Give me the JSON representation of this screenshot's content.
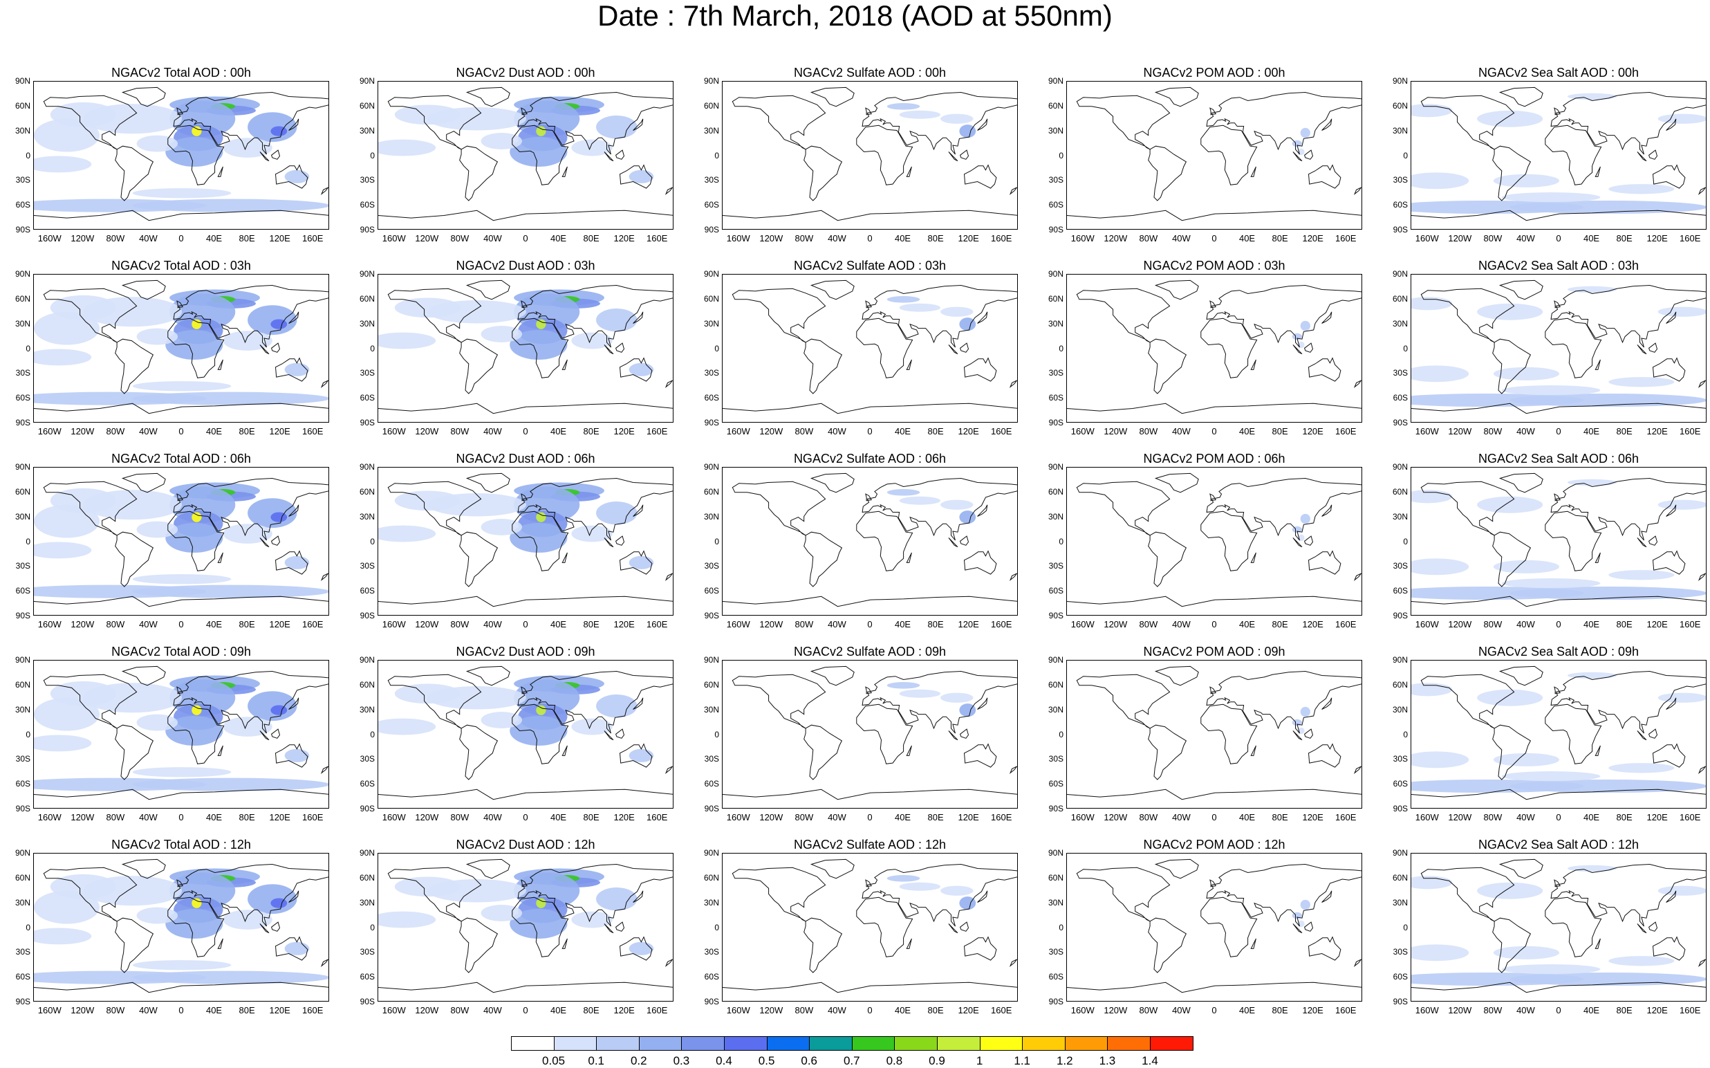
{
  "title": "Date : 7th March, 2018 (AOD at 550nm)",
  "species": [
    {
      "key": "total",
      "color_base": "#8aa8ee",
      "levels": [
        "00h",
        "03h",
        "06h",
        "09h",
        "12h"
      ],
      "titles": [
        "NGACv2 Total AOD : 00h",
        "NGACv2 Total AOD : 03h",
        "NGACv2 Total AOD : 06h",
        "NGACv2 Total AOD : 09h",
        "NGACv2 Total AOD :  12h"
      ]
    },
    {
      "key": "dust",
      "color_base": "#9bb6f1",
      "levels": [
        "00h",
        "03h",
        "06h",
        "09h",
        "12h"
      ],
      "titles": [
        "NGACv2 Dust AOD : 00h",
        "NGACv2 Dust AOD : 03h",
        "NGACv2 Dust AOD : 06h",
        "NGACv2 Dust AOD : 09h",
        "NGACv2 Dust AOD : 12h"
      ]
    },
    {
      "key": "sulfate",
      "color_base": "#b9ccf6",
      "levels": [
        "00h",
        "03h",
        "06h",
        "09h",
        "12h"
      ],
      "titles": [
        "NGACv2 Sulfate AOD : 00h",
        "NGACv2 Sulfate AOD : 03h",
        "NGACv2 Sulfate AOD : 06h",
        "NGACv2 Sulfate AOD : 09h",
        "NGACv2 Sulfate AOD : 12h"
      ]
    },
    {
      "key": "pom",
      "color_base": "#c7d6f8",
      "levels": [
        "00h",
        "03h",
        "06h",
        "09h",
        "12h"
      ],
      "titles": [
        "NGACv2 POM AOD : 00h",
        "NGACv2 POM AOD : 03h",
        "NGACv2 POM AOD : 06h",
        "NGACv2 POM AOD : 09h",
        "NGACv2 POM  AOD : 12h"
      ]
    },
    {
      "key": "seasalt",
      "color_base": "#aec4f4",
      "levels": [
        "00h",
        "03h",
        "06h",
        "09h",
        "12h"
      ],
      "titles": [
        "NGACv2 Sea Salt AOD : 00h",
        "NGACv2 Sea Salt AOD : 03h",
        "NGACv2 Sea Salt AOD : 06h",
        "NGACv2 Sea Salt  AOD : 09h",
        "NGACv2 Sea Salt AOD : 12h"
      ]
    }
  ],
  "lat_labels": [
    "90N",
    "60N",
    "30N",
    "0",
    "30S",
    "60S",
    "90S"
  ],
  "lon_labels": [
    "160W",
    "120W",
    "80W",
    "40W",
    "0",
    "40E",
    "80E",
    "120E",
    "160E"
  ],
  "colorbar": {
    "labels": [
      "0.05",
      "0.1",
      "0.2",
      "0.3",
      "0.4",
      "0.5",
      "0.6",
      "0.7",
      "0.8",
      "0.9",
      "1",
      "1.1",
      "1.2",
      "1.3",
      "1.4"
    ],
    "colors": [
      "#ffffff",
      "#d6e2fb",
      "#b9ccf6",
      "#95b0f0",
      "#7a94ec",
      "#5b6ef0",
      "#0b6ef0",
      "#0a9b9b",
      "#36c81e",
      "#8ad81a",
      "#c5ee3b",
      "#ffff14",
      "#ffcc05",
      "#ff9c05",
      "#ff6e05",
      "#ff1a05"
    ]
  }
}
